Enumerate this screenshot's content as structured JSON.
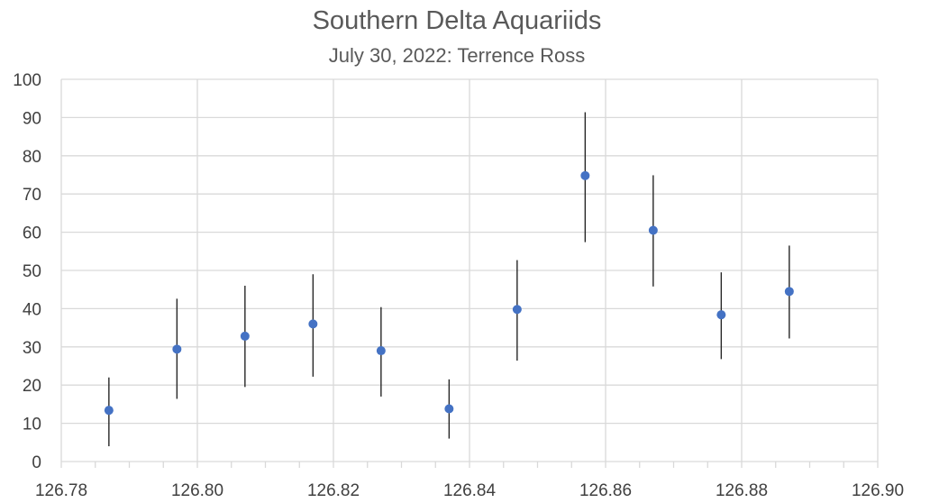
{
  "chart_data": {
    "type": "scatter",
    "title": "Southern Delta Aquariids",
    "subtitle": "July 30, 2022: Terrence Ross",
    "xlabel": "",
    "ylabel": "",
    "xlim": [
      126.78,
      126.9
    ],
    "ylim": [
      0,
      100
    ],
    "x_ticks": [
      "126.78",
      "126.80",
      "126.82",
      "126.84",
      "126.86",
      "126.88",
      "126.90"
    ],
    "y_ticks": [
      "0",
      "10",
      "20",
      "30",
      "40",
      "50",
      "60",
      "70",
      "80",
      "90",
      "100"
    ],
    "grid": true,
    "legend": "none",
    "colors": {
      "marker": "#4472C4",
      "error_bar": "#262626",
      "grid": "#d9d9d9"
    },
    "series": [
      {
        "points": [
          {
            "x": 126.787,
            "y": 13.4,
            "err_low": 9.4,
            "err_high": 8.6
          },
          {
            "x": 126.797,
            "y": 29.4,
            "err_low": 13.0,
            "err_high": 13.2
          },
          {
            "x": 126.807,
            "y": 32.8,
            "err_low": 13.3,
            "err_high": 13.2
          },
          {
            "x": 126.817,
            "y": 36.0,
            "err_low": 13.8,
            "err_high": 13.0
          },
          {
            "x": 126.827,
            "y": 29.0,
            "err_low": 12.0,
            "err_high": 11.4
          },
          {
            "x": 126.837,
            "y": 13.8,
            "err_low": 7.8,
            "err_high": 7.7
          },
          {
            "x": 126.847,
            "y": 39.8,
            "err_low": 13.4,
            "err_high": 12.9
          },
          {
            "x": 126.857,
            "y": 74.8,
            "err_low": 17.4,
            "err_high": 16.6
          },
          {
            "x": 126.867,
            "y": 60.5,
            "err_low": 14.7,
            "err_high": 14.4
          },
          {
            "x": 126.877,
            "y": 38.4,
            "err_low": 11.6,
            "err_high": 11.1
          },
          {
            "x": 126.887,
            "y": 44.5,
            "err_low": 12.3,
            "err_high": 12.0
          }
        ]
      }
    ]
  }
}
